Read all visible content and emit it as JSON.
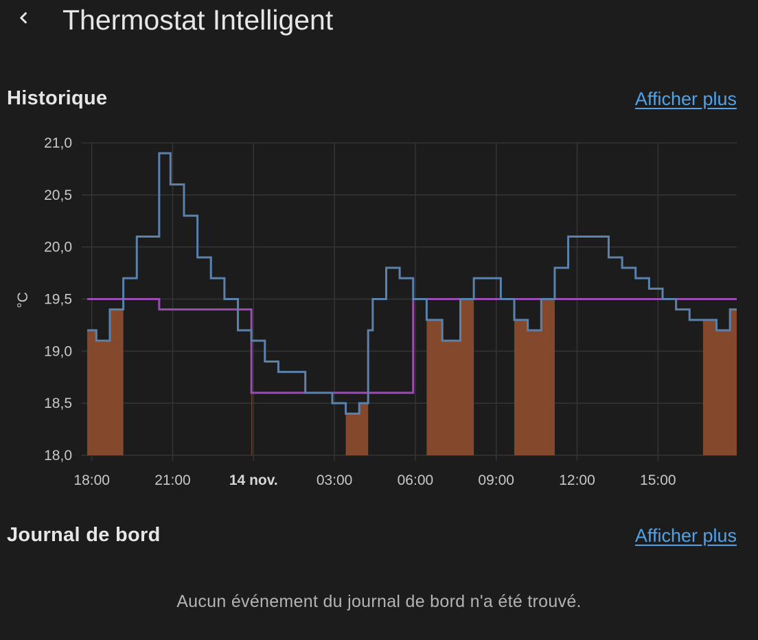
{
  "header": {
    "title": "Thermostat Intelligent",
    "back_icon": "chevron-left-icon"
  },
  "history": {
    "title": "Historique",
    "more_label": "Afficher plus"
  },
  "logbook": {
    "title": "Journal de bord",
    "more_label": "Afficher plus",
    "empty_message": "Aucun événement du journal de bord n'a été trouvé."
  },
  "colors": {
    "background": "#1c1c1c",
    "link": "#4fa3e8",
    "current_temperature": "#5b82ad",
    "target_temperature": "#9c4db3",
    "heating": "#8a4b2d",
    "grid": "#353535"
  },
  "chart_data": {
    "type": "line",
    "title": "",
    "ylabel": "°C",
    "ylim": [
      18.0,
      21.0
    ],
    "yticks": [
      "18,0",
      "18,5",
      "19,0",
      "19,5",
      "20,0",
      "20,5",
      "21,0"
    ],
    "yticks_values": [
      18.0,
      18.5,
      19.0,
      19.5,
      20.0,
      20.5,
      21.0
    ],
    "xlim": [
      "17:50",
      "17:55 (+1 day)"
    ],
    "xticks": [
      {
        "label": "18:00",
        "hour": 18,
        "bold": false
      },
      {
        "label": "21:00",
        "hour": 21,
        "bold": false
      },
      {
        "label": "14 nov.",
        "hour": 24,
        "bold": true
      },
      {
        "label": "03:00",
        "hour": 27,
        "bold": false
      },
      {
        "label": "06:00",
        "hour": 30,
        "bold": false
      },
      {
        "label": "09:00",
        "hour": 33,
        "bold": false
      },
      {
        "label": "12:00",
        "hour": 36,
        "bold": false
      },
      {
        "label": "15:00",
        "hour": 39,
        "bold": false
      }
    ],
    "x_range_hours": [
      17.83,
      41.92
    ],
    "grid": true,
    "legend": "none",
    "series": [
      {
        "kind": "step",
        "points": [
          [
            17.83,
            19.2
          ],
          [
            18.17,
            19.1
          ],
          [
            18.67,
            19.4
          ],
          [
            19.17,
            19.7
          ],
          [
            19.67,
            20.1
          ],
          [
            20.5,
            20.9
          ],
          [
            20.92,
            20.6
          ],
          [
            21.42,
            20.3
          ],
          [
            21.92,
            19.9
          ],
          [
            22.42,
            19.7
          ],
          [
            22.92,
            19.5
          ],
          [
            23.42,
            19.2
          ],
          [
            23.92,
            19.1
          ],
          [
            24.42,
            18.9
          ],
          [
            24.92,
            18.8
          ],
          [
            25.92,
            18.6
          ],
          [
            26.92,
            18.5
          ],
          [
            27.42,
            18.4
          ],
          [
            27.92,
            18.5
          ],
          [
            28.25,
            19.2
          ],
          [
            28.42,
            19.5
          ],
          [
            28.92,
            19.8
          ],
          [
            29.42,
            19.7
          ],
          [
            29.92,
            19.5
          ],
          [
            30.42,
            19.3
          ],
          [
            31.0,
            19.1
          ],
          [
            31.67,
            19.5
          ],
          [
            32.17,
            19.7
          ],
          [
            33.17,
            19.5
          ],
          [
            33.67,
            19.3
          ],
          [
            34.17,
            19.2
          ],
          [
            34.67,
            19.5
          ],
          [
            35.17,
            19.8
          ],
          [
            35.67,
            20.1
          ],
          [
            37.17,
            19.9
          ],
          [
            37.67,
            19.8
          ],
          [
            38.17,
            19.7
          ],
          [
            38.67,
            19.6
          ],
          [
            39.17,
            19.5
          ],
          [
            39.67,
            19.4
          ],
          [
            40.17,
            19.3
          ],
          [
            41.17,
            19.2
          ],
          [
            41.67,
            19.4
          ],
          [
            41.92,
            19.4
          ]
        ]
      },
      {
        "kind": "step",
        "points": [
          [
            17.83,
            19.5
          ],
          [
            20.5,
            19.4
          ],
          [
            23.92,
            18.6
          ],
          [
            29.92,
            19.5
          ],
          [
            41.92,
            19.5
          ]
        ]
      }
    ],
    "heating_periods": [
      [
        17.83,
        19.17
      ],
      [
        23.92,
        23.95
      ],
      [
        27.42,
        28.25
      ],
      [
        30.42,
        32.17
      ],
      [
        33.67,
        35.17
      ],
      [
        40.67,
        41.92
      ]
    ]
  }
}
